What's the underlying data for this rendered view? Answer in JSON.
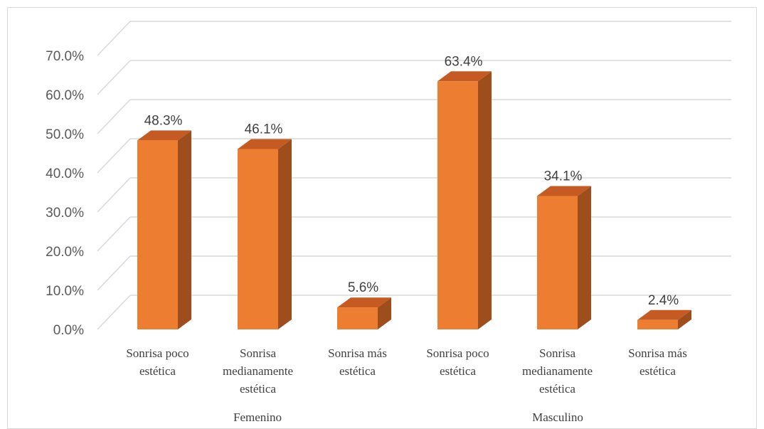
{
  "chart_data": {
    "type": "bar",
    "style": "3d-clustered-column",
    "y_axis": {
      "min": 0,
      "max": 70,
      "step": 10,
      "tick_labels": [
        "0.0%",
        "10.0%",
        "20.0%",
        "30.0%",
        "40.0%",
        "50.0%",
        "60.0%",
        "70.0%"
      ]
    },
    "grid": true,
    "colors": {
      "bar_front": "#ED7D31",
      "bar_side": "#9E4D1C",
      "bar_top": "#C55A22",
      "gridline": "#d9d9d9"
    },
    "groups": [
      {
        "name": "Femenino",
        "categories": [
          {
            "label_lines": [
              "Sonrisa poco",
              "estética"
            ],
            "value": 48.3,
            "label": "48.3%"
          },
          {
            "label_lines": [
              "Sonrisa",
              "medianamente",
              "estética"
            ],
            "value": 46.1,
            "label": "46.1%"
          },
          {
            "label_lines": [
              "Sonrisa más",
              "estética"
            ],
            "value": 5.6,
            "label": "5.6%"
          }
        ]
      },
      {
        "name": "Masculino",
        "categories": [
          {
            "label_lines": [
              "Sonrisa poco",
              "estética"
            ],
            "value": 63.4,
            "label": "63.4%"
          },
          {
            "label_lines": [
              "Sonrisa",
              "medianamente",
              "estética"
            ],
            "value": 34.1,
            "label": "34.1%"
          },
          {
            "label_lines": [
              "Sonrisa más",
              "estética"
            ],
            "value": 2.4,
            "label": "2.4%"
          }
        ]
      }
    ]
  }
}
